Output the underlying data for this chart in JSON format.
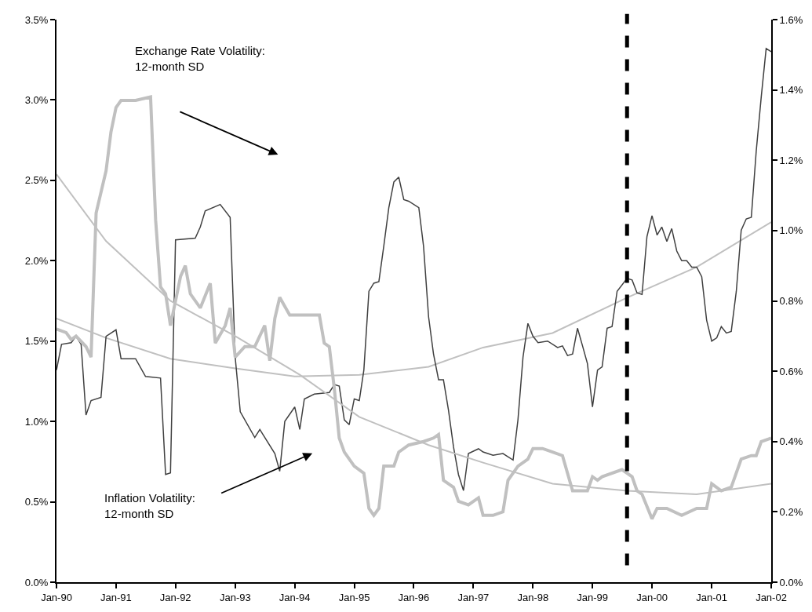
{
  "chart_data": {
    "type": "line",
    "xlim": [
      "1990-01",
      "2002-01"
    ],
    "xticks": [
      {
        "value": "1990-01",
        "label": "Jan-90"
      },
      {
        "value": "1991-01",
        "label": "Jan-91"
      },
      {
        "value": "1992-01",
        "label": "Jan-92"
      },
      {
        "value": "1993-01",
        "label": "Jan-93"
      },
      {
        "value": "1994-01",
        "label": "Jan-94"
      },
      {
        "value": "1995-01",
        "label": "Jan-95"
      },
      {
        "value": "1996-01",
        "label": "Jan-96"
      },
      {
        "value": "1997-01",
        "label": "Jan-97"
      },
      {
        "value": "1998-01",
        "label": "Jan-98"
      },
      {
        "value": "1999-01",
        "label": "Jan-99"
      },
      {
        "value": "2000-01",
        "label": "Jan-00"
      },
      {
        "value": "2001-01",
        "label": "Jan-01"
      },
      {
        "value": "2002-01",
        "label": "Jan-02"
      }
    ],
    "ylim": [
      0,
      3.5
    ],
    "yticks": [
      {
        "value": 0,
        "label": "0.0%"
      },
      {
        "value": 0.5,
        "label": "0.5%"
      },
      {
        "value": 1,
        "label": "1.0%"
      },
      {
        "value": 1.5,
        "label": "1.5%"
      },
      {
        "value": 2,
        "label": "2.0%"
      },
      {
        "value": 2.5,
        "label": "2.5%"
      },
      {
        "value": 3,
        "label": "3.0%"
      },
      {
        "value": 3.5,
        "label": "3.5%"
      }
    ],
    "y2lim": [
      0,
      1.6
    ],
    "y2ticks": [
      {
        "value": 0,
        "label": "0.0%"
      },
      {
        "value": 0.2,
        "label": "0.2%"
      },
      {
        "value": 0.4,
        "label": "0.4%"
      },
      {
        "value": 0.6,
        "label": "0.6%"
      },
      {
        "value": 0.8,
        "label": "0.8%"
      },
      {
        "value": 1,
        "label": "1.0%"
      },
      {
        "value": 1.2,
        "label": "1.2%"
      },
      {
        "value": 1.4,
        "label": "1.4%"
      },
      {
        "value": 1.6,
        "label": "1.6%"
      }
    ],
    "grid": false,
    "marker": "none",
    "series": [
      {
        "color": "#c0c0c0",
        "axis": "y",
        "x": [
          "1990-01",
          "1990-11",
          "1991-12",
          "1993-01",
          "1994-01",
          "1995-02",
          "1996-04",
          "1997-03",
          "1998-05",
          "1999-08",
          "2000-10",
          "2002-01"
        ],
        "values": [
          1.64,
          1.52,
          1.39,
          1.33,
          1.28,
          1.29,
          1.34,
          1.46,
          1.55,
          1.77,
          1.96,
          2.24
        ]
      },
      {
        "color": "#c0c0c0",
        "axis": "y2",
        "x": [
          "1990-01",
          "1990-11",
          "1991-12",
          "1993-01",
          "1994-02",
          "1995-02",
          "1996-04",
          "1997-03",
          "1998-05",
          "1999-08",
          "2000-10",
          "2002-01"
        ],
        "values": [
          1.16,
          0.97,
          0.8,
          0.7,
          0.59,
          0.47,
          0.39,
          0.34,
          0.28,
          0.26,
          0.25,
          0.28
        ]
      },
      {
        "color": "#c0c0c0",
        "axis": "y2",
        "x": [
          "1990-01",
          "1990-03",
          "1990-04",
          "1990-05",
          "1990-07",
          "1990-08",
          "1990-09",
          "1990-11",
          "1990-12",
          "1991-01",
          "1991-02",
          "1991-05",
          "1991-08",
          "1991-09",
          "1991-10",
          "1991-11",
          "1991-12",
          "1992-02",
          "1992-03",
          "1992-04",
          "1992-06",
          "1992-08",
          "1992-09",
          "1992-11",
          "1992-12",
          "1993-01",
          "1993-03",
          "1993-05",
          "1993-07",
          "1993-08",
          "1993-09",
          "1993-10",
          "1993-12",
          "1994-02",
          "1994-05",
          "1994-06",
          "1994-07",
          "1994-08",
          "1994-09",
          "1994-10",
          "1994-11",
          "1995-01",
          "1995-03",
          "1995-04",
          "1995-05",
          "1995-06",
          "1995-07",
          "1995-09",
          "1995-10",
          "1995-12",
          "1996-03",
          "1996-05",
          "1996-06",
          "1996-07",
          "1996-08",
          "1996-09",
          "1996-10",
          "1996-12",
          "1997-02",
          "1997-03",
          "1997-05",
          "1997-07",
          "1997-08",
          "1997-10",
          "1997-12",
          "1998-01",
          "1998-03",
          "1998-05",
          "1998-07",
          "1998-09",
          "1998-12",
          "1999-01",
          "1999-02",
          "1999-03",
          "1999-07",
          "1999-09",
          "1999-10",
          "1999-11",
          "2000-01",
          "2000-02",
          "2000-04",
          "2000-07",
          "2000-10",
          "2000-12",
          "2001-01",
          "2001-03",
          "2001-05",
          "2001-07",
          "2001-09",
          "2001-10",
          "2001-11",
          "2002-01"
        ],
        "values": [
          0.72,
          0.71,
          0.69,
          0.7,
          0.67,
          0.64,
          1.05,
          1.17,
          1.28,
          1.35,
          1.37,
          1.37,
          1.38,
          1.03,
          0.84,
          0.82,
          0.73,
          0.87,
          0.9,
          0.82,
          0.78,
          0.85,
          0.68,
          0.73,
          0.78,
          0.64,
          0.67,
          0.67,
          0.73,
          0.63,
          0.75,
          0.81,
          0.76,
          0.76,
          0.76,
          0.76,
          0.68,
          0.67,
          0.55,
          0.41,
          0.37,
          0.33,
          0.31,
          0.21,
          0.19,
          0.21,
          0.33,
          0.33,
          0.37,
          0.39,
          0.4,
          0.41,
          0.42,
          0.29,
          0.28,
          0.27,
          0.23,
          0.22,
          0.24,
          0.19,
          0.19,
          0.2,
          0.29,
          0.33,
          0.35,
          0.38,
          0.38,
          0.37,
          0.36,
          0.26,
          0.26,
          0.3,
          0.29,
          0.3,
          0.32,
          0.3,
          0.26,
          0.25,
          0.18,
          0.21,
          0.21,
          0.19,
          0.21,
          0.21,
          0.28,
          0.26,
          0.27,
          0.35,
          0.36,
          0.36,
          0.4,
          0.41
        ]
      },
      {
        "color": "#404040",
        "axis": "y",
        "x": [
          "1990-01",
          "1990-02",
          "1990-04",
          "1990-05",
          "1990-06",
          "1990-07",
          "1990-08",
          "1990-10",
          "1990-11",
          "1991-01",
          "1991-02",
          "1991-05",
          "1991-07",
          "1991-10",
          "1991-11",
          "1991-12",
          "1992-01",
          "1992-05",
          "1992-06",
          "1992-07",
          "1992-10",
          "1992-12",
          "1993-01",
          "1993-02",
          "1993-05",
          "1993-06",
          "1993-09",
          "1993-10",
          "1993-11",
          "1994-01",
          "1994-02",
          "1994-03",
          "1994-05",
          "1994-08",
          "1994-09",
          "1994-10",
          "1994-11",
          "1994-12",
          "1995-01",
          "1995-02",
          "1995-03",
          "1995-04",
          "1995-05",
          "1995-06",
          "1995-07",
          "1995-08",
          "1995-09",
          "1995-10",
          "1995-11",
          "1995-12",
          "1996-02",
          "1996-03",
          "1996-04",
          "1996-05",
          "1996-06",
          "1996-07",
          "1996-08",
          "1996-09",
          "1996-10",
          "1996-11",
          "1996-12",
          "1997-02",
          "1997-03",
          "1997-05",
          "1997-07",
          "1997-09",
          "1997-10",
          "1997-11",
          "1997-12",
          "1998-01",
          "1998-02",
          "1998-04",
          "1998-06",
          "1998-07",
          "1998-08",
          "1998-09",
          "1998-10",
          "1998-11",
          "1998-12",
          "1999-01",
          "1999-02",
          "1999-03",
          "1999-04",
          "1999-05",
          "1999-06",
          "1999-08",
          "1999-09",
          "1999-10",
          "1999-11",
          "1999-12",
          "2000-01",
          "2000-02",
          "2000-03",
          "2000-04",
          "2000-05",
          "2000-06",
          "2000-07",
          "2000-08",
          "2000-09",
          "2000-10",
          "2000-11",
          "2000-12",
          "2001-01",
          "2001-02",
          "2001-03",
          "2001-04",
          "2001-05",
          "2001-06",
          "2001-07",
          "2001-08",
          "2001-09",
          "2001-10",
          "2001-11",
          "2001-12",
          "2002-01"
        ],
        "values": [
          1.32,
          1.48,
          1.49,
          1.53,
          1.48,
          1.04,
          1.13,
          1.15,
          1.53,
          1.57,
          1.39,
          1.39,
          1.28,
          1.27,
          0.67,
          0.68,
          2.13,
          2.14,
          2.21,
          2.31,
          2.35,
          2.27,
          1.4,
          1.06,
          0.9,
          0.95,
          0.8,
          0.69,
          1.0,
          1.09,
          0.95,
          1.14,
          1.17,
          1.18,
          1.23,
          1.22,
          1.01,
          0.98,
          1.14,
          1.13,
          1.32,
          1.81,
          1.86,
          1.87,
          2.09,
          2.33,
          2.49,
          2.52,
          2.38,
          2.37,
          2.33,
          2.09,
          1.65,
          1.42,
          1.26,
          1.26,
          1.07,
          0.84,
          0.67,
          0.57,
          0.8,
          0.83,
          0.81,
          0.79,
          0.8,
          0.76,
          1.01,
          1.4,
          1.61,
          1.53,
          1.49,
          1.5,
          1.46,
          1.47,
          1.41,
          1.42,
          1.58,
          1.47,
          1.36,
          1.09,
          1.32,
          1.34,
          1.58,
          1.59,
          1.81,
          1.89,
          1.88,
          1.8,
          1.79,
          2.15,
          2.28,
          2.16,
          2.21,
          2.12,
          2.2,
          2.06,
          2.0,
          2.0,
          1.96,
          1.96,
          1.9,
          1.63,
          1.5,
          1.52,
          1.59,
          1.55,
          1.56,
          1.81,
          2.19,
          2.26,
          2.27,
          2.68,
          3.02,
          3.32,
          3.3
        ]
      }
    ],
    "ref_lines": [
      {
        "axis": "x",
        "value": "1999-08",
        "color": "#000000",
        "line_style": "dashed"
      }
    ],
    "annotations": [
      "Exchange Rate Volatility:\n12-month SD",
      "Inflation Volatility:\n12-month SD"
    ]
  }
}
